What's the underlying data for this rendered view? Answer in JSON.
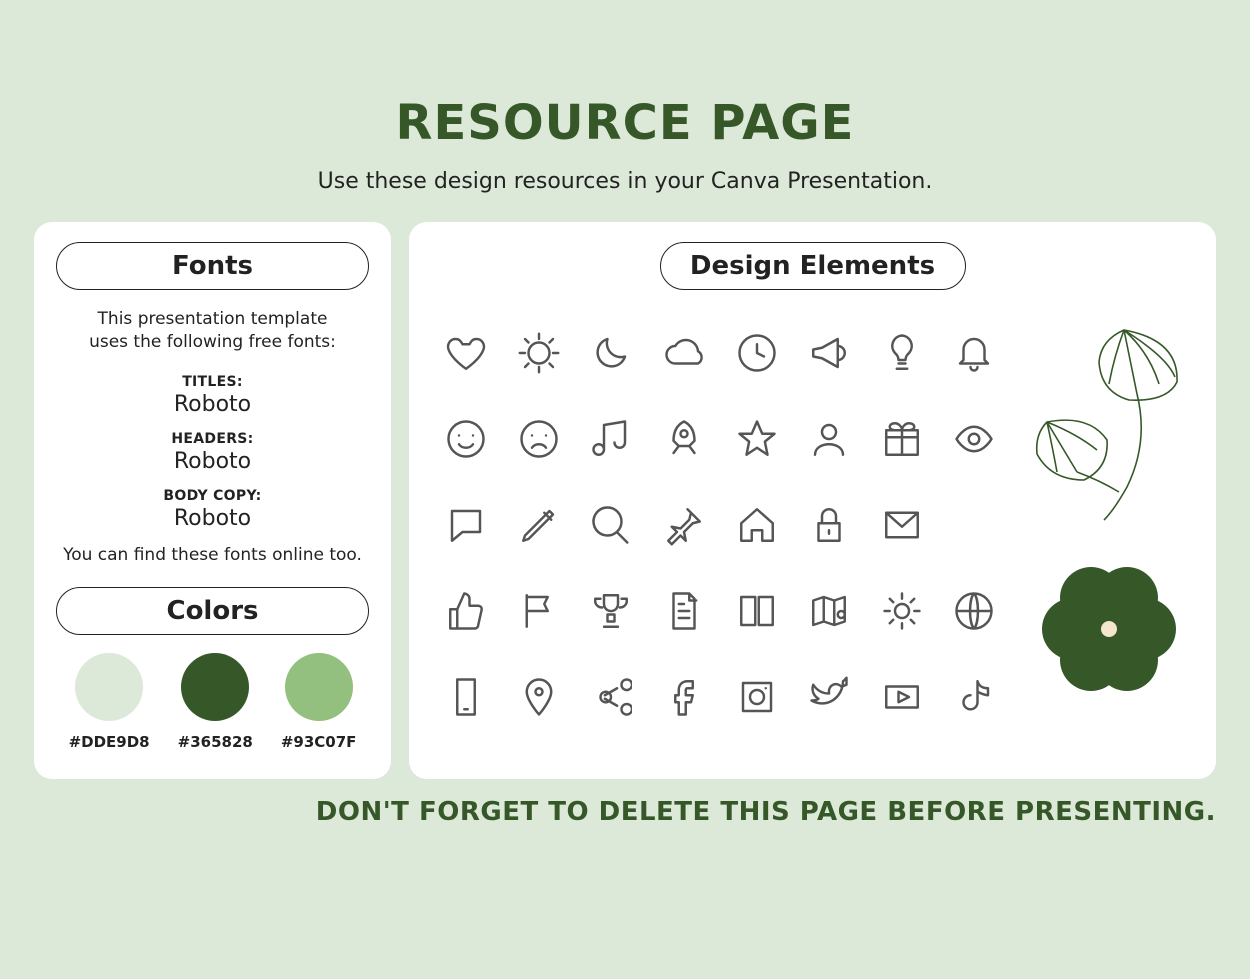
{
  "title": "RESOURCE PAGE",
  "subtitle": "Use these design resources in your Canva Presentation.",
  "footer": "DON'T FORGET TO DELETE THIS PAGE BEFORE PRESENTING.",
  "colors": {
    "page_bg": "#dde9d8",
    "panel_bg": "#ffffff",
    "title_color": "#365828",
    "text_color": "#222222",
    "icon_stroke": "#555555",
    "flower_fill": "#365828",
    "flower_center": "#f5e6d0",
    "leaf_stroke": "#365828"
  },
  "fonts_panel": {
    "header": "Fonts",
    "intro_line1": "This presentation template",
    "intro_line2": "uses the following free fonts:",
    "items": [
      {
        "label": "TITLES:",
        "name": "Roboto"
      },
      {
        "label": "HEADERS:",
        "name": "Roboto"
      },
      {
        "label": "BODY COPY:",
        "name": "Roboto"
      }
    ],
    "note": "You can find these fonts online too."
  },
  "colors_panel": {
    "header": "Colors",
    "swatches": [
      {
        "hex": "#DDE9D8"
      },
      {
        "hex": "#365828"
      },
      {
        "hex": "#93C07F"
      }
    ]
  },
  "design_panel": {
    "header": "Design Elements",
    "icons": [
      "heart",
      "sun",
      "moon",
      "cloud",
      "clock",
      "megaphone",
      "lightbulb",
      "bell",
      "happy-face",
      "sad-face",
      "music",
      "rocket",
      "star",
      "user",
      "gift",
      "eye",
      "speech-bubble",
      "pencil",
      "search",
      "pushpin",
      "house",
      "lock",
      "envelope",
      "",
      "thumbs-up",
      "flag",
      "trophy",
      "document",
      "book",
      "map",
      "gear",
      "globe",
      "smartphone",
      "map-pin",
      "share",
      "facebook",
      "instagram",
      "twitter",
      "youtube",
      "tiktok"
    ]
  }
}
